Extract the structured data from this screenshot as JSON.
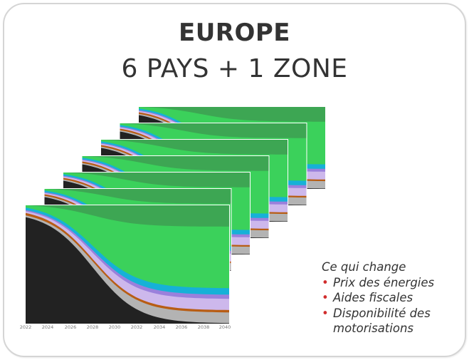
{
  "slide": {
    "title": "EUROPE",
    "subtitle": "6 PAYS + 1 ZONE"
  },
  "chart": {
    "x_axis_ticks": [
      "2022",
      "2024",
      "2026",
      "2028",
      "2030",
      "2032",
      "2034",
      "2036",
      "2038",
      "2040"
    ],
    "stacked_copies": 7,
    "layer_colors": {
      "dark": "#222222",
      "grey": "#b3b3b3",
      "orange": "#b85d14",
      "lavender": "#cdb8ec",
      "purple": "#9a80dc",
      "cyan": "#16b1d7",
      "light_green": "#3bd15b",
      "green": "#3da653"
    }
  },
  "changes": {
    "heading": "Ce qui change",
    "items": [
      "Prix des énergies",
      "Aides fiscales",
      "Disponibilité des motorisations"
    ],
    "bullet_color": "#d12e2e"
  }
}
